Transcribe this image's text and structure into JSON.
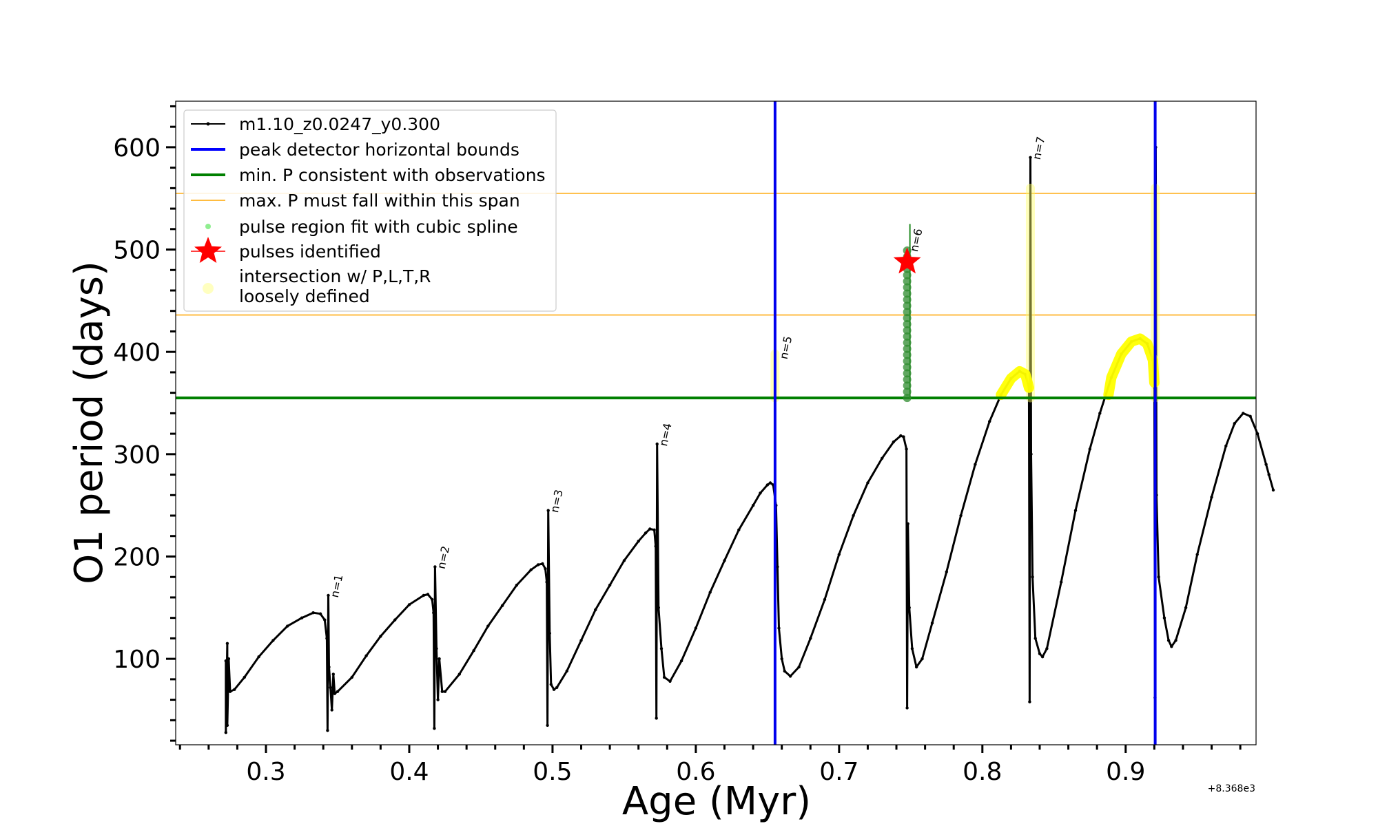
{
  "chart_data": {
    "type": "line",
    "xlabel": "Age (Myr)",
    "ylabel": "O1 period (days)",
    "x_offset_label": "+8.368e3",
    "xlim": [
      0.237,
      0.991
    ],
    "ylim": [
      16,
      645
    ],
    "xticks": [
      0.3,
      0.4,
      0.5,
      0.6,
      0.7,
      0.8,
      0.9
    ],
    "xtick_labels": [
      "0.3",
      "0.4",
      "0.5",
      "0.6",
      "0.7",
      "0.8",
      "0.9"
    ],
    "yticks": [
      100,
      200,
      300,
      400,
      500,
      600
    ],
    "ytick_labels": [
      "100",
      "200",
      "300",
      "400",
      "500",
      "600"
    ],
    "legend": {
      "position": "upper-left",
      "entries": [
        {
          "label": "m1.10_z0.0247_y0.300",
          "color": "#000000",
          "marker": "line-dot"
        },
        {
          "label": "peak detector horizontal bounds",
          "color": "#0000ff",
          "marker": "line"
        },
        {
          "label": "min. P consistent with observations",
          "color": "#008000",
          "marker": "line"
        },
        {
          "label": "max. P must fall within this span",
          "color": "#ffa500",
          "marker": "thin-line"
        },
        {
          "label": "pulse region fit with cubic spline",
          "color": "#90ee90",
          "marker": "dot"
        },
        {
          "label": "pulses identified",
          "color": "#ff0000",
          "marker": "star"
        },
        {
          "label": "intersection w/ P,L,T,R",
          "label2": "loosely defined",
          "color": "#ffffc0",
          "marker": "circle"
        }
      ]
    },
    "series": [
      {
        "name": "m1.10_z0.0247_y0.300",
        "color": "#000000",
        "points": [
          [
            0.272,
            98
          ],
          [
            0.272,
            28
          ],
          [
            0.273,
            115
          ],
          [
            0.273,
            35
          ],
          [
            0.274,
            100
          ],
          [
            0.275,
            68
          ],
          [
            0.278,
            70
          ],
          [
            0.285,
            82
          ],
          [
            0.295,
            102
          ],
          [
            0.305,
            118
          ],
          [
            0.315,
            132
          ],
          [
            0.325,
            140
          ],
          [
            0.333,
            145
          ],
          [
            0.338,
            144
          ],
          [
            0.341,
            138
          ],
          [
            0.3425,
            120
          ],
          [
            0.343,
            30
          ],
          [
            0.3435,
            162
          ],
          [
            0.344,
            92
          ],
          [
            0.345,
            72
          ],
          [
            0.346,
            50
          ],
          [
            0.347,
            85
          ],
          [
            0.348,
            66
          ],
          [
            0.35,
            68
          ],
          [
            0.36,
            82
          ],
          [
            0.37,
            103
          ],
          [
            0.38,
            122
          ],
          [
            0.39,
            138
          ],
          [
            0.4,
            153
          ],
          [
            0.41,
            162
          ],
          [
            0.413,
            163
          ],
          [
            0.416,
            158
          ],
          [
            0.417,
            145
          ],
          [
            0.4175,
            32
          ],
          [
            0.418,
            190
          ],
          [
            0.419,
            110
          ],
          [
            0.42,
            60
          ],
          [
            0.421,
            100
          ],
          [
            0.423,
            68
          ],
          [
            0.425,
            68
          ],
          [
            0.435,
            85
          ],
          [
            0.445,
            108
          ],
          [
            0.455,
            132
          ],
          [
            0.465,
            152
          ],
          [
            0.475,
            172
          ],
          [
            0.485,
            187
          ],
          [
            0.49,
            192
          ],
          [
            0.493,
            193
          ],
          [
            0.495,
            188
          ],
          [
            0.496,
            175
          ],
          [
            0.4965,
            35
          ],
          [
            0.497,
            245
          ],
          [
            0.498,
            125
          ],
          [
            0.499,
            75
          ],
          [
            0.501,
            70
          ],
          [
            0.503,
            72
          ],
          [
            0.51,
            88
          ],
          [
            0.52,
            118
          ],
          [
            0.53,
            148
          ],
          [
            0.54,
            172
          ],
          [
            0.55,
            196
          ],
          [
            0.56,
            215
          ],
          [
            0.565,
            223
          ],
          [
            0.568,
            227
          ],
          [
            0.571,
            226
          ],
          [
            0.572,
            210
          ],
          [
            0.5725,
            42
          ],
          [
            0.573,
            310
          ],
          [
            0.574,
            150
          ],
          [
            0.576,
            110
          ],
          [
            0.578,
            82
          ],
          [
            0.582,
            78
          ],
          [
            0.59,
            98
          ],
          [
            0.6,
            130
          ],
          [
            0.61,
            165
          ],
          [
            0.62,
            196
          ],
          [
            0.63,
            226
          ],
          [
            0.64,
            250
          ],
          [
            0.645,
            262
          ],
          [
            0.65,
            270
          ],
          [
            0.652,
            272
          ],
          [
            0.654,
            270
          ],
          [
            0.656,
            250
          ],
          [
            0.657,
            190
          ],
          [
            0.658,
            130
          ],
          [
            0.66,
            100
          ],
          [
            0.662,
            88
          ],
          [
            0.666,
            83
          ],
          [
            0.672,
            92
          ],
          [
            0.68,
            120
          ],
          [
            0.69,
            158
          ],
          [
            0.7,
            202
          ],
          [
            0.71,
            240
          ],
          [
            0.72,
            272
          ],
          [
            0.73,
            296
          ],
          [
            0.738,
            312
          ],
          [
            0.743,
            318
          ],
          [
            0.745,
            317
          ],
          [
            0.747,
            305
          ],
          [
            0.7475,
            52
          ],
          [
            0.748,
            232
          ],
          [
            0.749,
            150
          ],
          [
            0.751,
            110
          ],
          [
            0.754,
            92
          ],
          [
            0.758,
            100
          ],
          [
            0.765,
            135
          ],
          [
            0.775,
            185
          ],
          [
            0.785,
            240
          ],
          [
            0.795,
            290
          ],
          [
            0.805,
            332
          ],
          [
            0.813,
            358
          ],
          [
            0.82,
            374
          ],
          [
            0.826,
            381
          ],
          [
            0.83,
            378
          ],
          [
            0.8325,
            365
          ],
          [
            0.833,
            58
          ],
          [
            0.8335,
            590
          ],
          [
            0.834,
            300
          ],
          [
            0.835,
            180
          ],
          [
            0.837,
            120
          ],
          [
            0.84,
            105
          ],
          [
            0.842,
            102
          ],
          [
            0.845,
            110
          ],
          [
            0.855,
            175
          ],
          [
            0.865,
            245
          ],
          [
            0.875,
            305
          ],
          [
            0.882,
            340
          ],
          [
            0.89,
            375
          ],
          [
            0.897,
            398
          ],
          [
            0.904,
            410
          ],
          [
            0.91,
            413
          ],
          [
            0.915,
            408
          ],
          [
            0.919,
            392
          ],
          [
            0.92,
            365
          ],
          [
            0.9205,
            62
          ],
          [
            0.921,
            600
          ],
          [
            0.9215,
            260
          ],
          [
            0.923,
            180
          ],
          [
            0.927,
            140
          ],
          [
            0.93,
            118
          ],
          [
            0.932,
            112
          ],
          [
            0.935,
            118
          ],
          [
            0.942,
            150
          ],
          [
            0.95,
            202
          ],
          [
            0.96,
            258
          ],
          [
            0.97,
            308
          ],
          [
            0.976,
            330
          ],
          [
            0.982,
            340
          ],
          [
            0.987,
            337
          ],
          [
            0.992,
            320
          ],
          [
            0.998,
            290
          ],
          [
            1.0,
            280
          ],
          [
            1.003,
            265
          ]
        ]
      }
    ],
    "pulse_labels": [
      {
        "label": "n=1",
        "x": 0.3435,
        "y": 162
      },
      {
        "label": "n=2",
        "x": 0.418,
        "y": 190
      },
      {
        "label": "n=3",
        "x": 0.497,
        "y": 245
      },
      {
        "label": "n=4",
        "x": 0.573,
        "y": 310
      },
      {
        "label": "n=5",
        "x": 0.657,
        "y": 395
      },
      {
        "label": "n=6",
        "x": 0.748,
        "y": 500
      },
      {
        "label": "n=7",
        "x": 0.8335,
        "y": 590
      }
    ],
    "peak_detector_bounds_x": [
      0.6553,
      0.9206
    ],
    "min_period_obs": 355,
    "max_period_span": [
      436,
      555
    ],
    "pulse_identified": {
      "x": 0.7475,
      "y": 488
    },
    "intersection_regions": [
      {
        "type": "vertical",
        "x": 0.6553,
        "y_from": 355,
        "y_to": 398
      },
      {
        "type": "vertical",
        "x": 0.8335,
        "y_from": 355,
        "y_to": 560
      },
      {
        "type": "curve",
        "points": [
          [
            0.813,
            358
          ],
          [
            0.82,
            374
          ],
          [
            0.826,
            381
          ],
          [
            0.83,
            378
          ],
          [
            0.8325,
            365
          ]
        ]
      },
      {
        "type": "vertical",
        "x": 0.9206,
        "y_from": 355,
        "y_to": 560
      },
      {
        "type": "curve",
        "points": [
          [
            0.888,
            358
          ],
          [
            0.89,
            375
          ],
          [
            0.897,
            398
          ],
          [
            0.904,
            410
          ],
          [
            0.91,
            413
          ],
          [
            0.915,
            408
          ],
          [
            0.919,
            392
          ],
          [
            0.92,
            370
          ]
        ]
      }
    ],
    "cubic_spline_region": {
      "x": 0.7475,
      "y_from": 355,
      "y_to": 525
    }
  }
}
